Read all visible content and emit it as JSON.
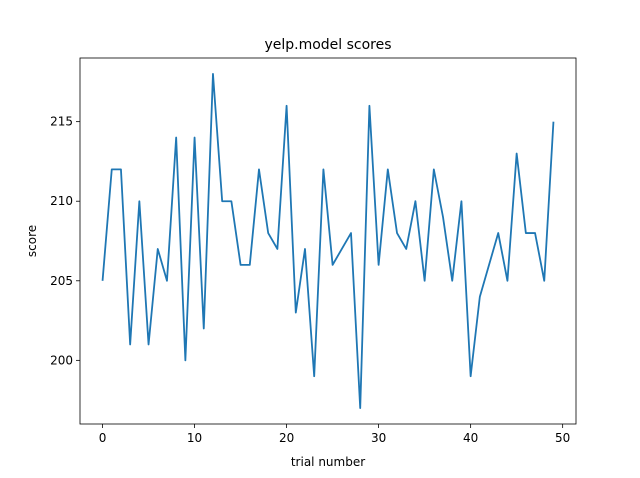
{
  "chart_data": {
    "type": "line",
    "title": "yelp.model scores",
    "xlabel": "trial number",
    "ylabel": "score",
    "xlim": [
      -2.45,
      51.45
    ],
    "ylim": [
      196.0,
      219.0
    ],
    "xticks": [
      0,
      10,
      20,
      30,
      40,
      50
    ],
    "yticks": [
      200,
      205,
      210,
      215
    ],
    "grid": false,
    "color": "#1f77b4",
    "series": [
      {
        "x": [
          0,
          1,
          2,
          3,
          4,
          5,
          6,
          7,
          8,
          9,
          10,
          11,
          12,
          13,
          14,
          15,
          16,
          17,
          18,
          19,
          20,
          21,
          22,
          23,
          24,
          25,
          26,
          27,
          28,
          29,
          30,
          31,
          32,
          33,
          34,
          35,
          36,
          37,
          38,
          39,
          40,
          41,
          42,
          43,
          44,
          45,
          46,
          47,
          48,
          49
        ],
        "values": [
          205,
          212,
          212,
          201,
          210,
          201,
          207,
          205,
          214,
          200,
          214,
          202,
          218,
          210,
          210,
          206,
          206,
          212,
          208,
          207,
          216,
          203,
          207,
          199,
          212,
          206,
          207,
          208,
          197,
          216,
          206,
          212,
          208,
          207,
          210,
          205,
          212,
          209,
          205,
          210,
          199,
          204,
          206,
          208,
          205,
          213,
          208,
          208,
          205,
          215
        ]
      }
    ]
  }
}
